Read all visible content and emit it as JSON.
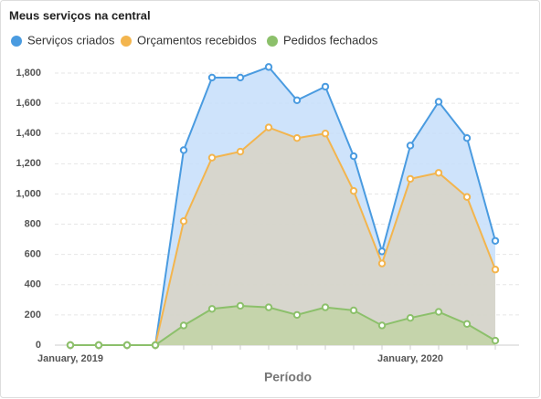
{
  "chart_data": {
    "type": "area",
    "title": "Meus serviços na central",
    "xlabel": "Período",
    "categories": [
      "January, 2019",
      null,
      null,
      null,
      null,
      null,
      null,
      null,
      null,
      null,
      null,
      null,
      "January, 2020",
      null,
      null,
      null
    ],
    "series": [
      {
        "name": "Serviços criados",
        "color": "#4a9be0",
        "fill": "#c6defa",
        "values": [
          0,
          0,
          0,
          0,
          1290,
          1770,
          1770,
          1840,
          1620,
          1710,
          1250,
          620,
          1320,
          1610,
          1370,
          690
        ]
      },
      {
        "name": "Orçamentos recebidos",
        "color": "#f3b54e",
        "fill": "#d8d4c4",
        "values": [
          0,
          0,
          0,
          0,
          820,
          1240,
          1280,
          1440,
          1370,
          1400,
          1020,
          540,
          1100,
          1140,
          980,
          500
        ]
      },
      {
        "name": "Pedidos fechados",
        "color": "#8cc06b",
        "fill": "#c2d4a4",
        "values": [
          0,
          0,
          0,
          0,
          130,
          240,
          260,
          250,
          200,
          250,
          230,
          130,
          180,
          220,
          140,
          30
        ]
      }
    ],
    "ylim": [
      0,
      1800
    ],
    "yticks": [
      0,
      200,
      400,
      600,
      800,
      {
        "value": 1000,
        "label": "1,000"
      },
      {
        "value": 1200,
        "label": "1,200"
      },
      {
        "value": 1400,
        "label": "1,400"
      },
      {
        "value": 1600,
        "label": "1,600"
      },
      {
        "value": 1800,
        "label": "1,800"
      }
    ],
    "grid": true,
    "legend": "top"
  }
}
